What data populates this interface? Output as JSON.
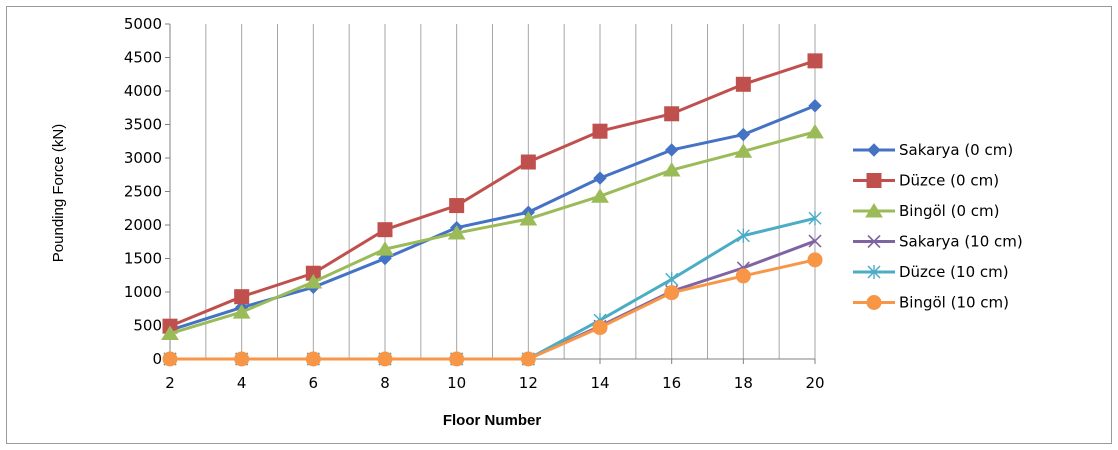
{
  "chart_data": {
    "type": "line",
    "title": "",
    "xlabel": "Floor Number",
    "ylabel": "Pounding Force (kN)",
    "x": [
      2,
      4,
      6,
      8,
      10,
      12,
      14,
      16,
      18,
      20
    ],
    "xlim": [
      2,
      20
    ],
    "ylim": [
      0,
      5000
    ],
    "x_ticks": [
      2,
      4,
      6,
      8,
      10,
      12,
      14,
      16,
      18,
      20
    ],
    "y_ticks": [
      0,
      500,
      1000,
      1500,
      2000,
      2500,
      3000,
      3500,
      4000,
      4500,
      5000
    ],
    "grid": "vertical",
    "legend_position": "right",
    "series": [
      {
        "name": "Sakarya (0 cm)",
        "color": "#4472C4",
        "marker": "diamond",
        "values": [
          430,
          770,
          1070,
          1500,
          1960,
          2190,
          2700,
          3120,
          3350,
          3780
        ]
      },
      {
        "name": "Düzce (0 cm)",
        "color": "#C0504D",
        "marker": "square",
        "values": [
          490,
          930,
          1280,
          1930,
          2290,
          2940,
          3400,
          3660,
          4100,
          4450
        ]
      },
      {
        "name": "Bingöl (0 cm)",
        "color": "#9BBB59",
        "marker": "triangle",
        "values": [
          380,
          700,
          1150,
          1640,
          1880,
          2090,
          2430,
          2820,
          3100,
          3390
        ]
      },
      {
        "name": "Sakarya (10 cm)",
        "color": "#8064A2",
        "marker": "x",
        "values": [
          0,
          0,
          0,
          0,
          0,
          0,
          490,
          1010,
          1360,
          1760
        ]
      },
      {
        "name": "Düzce (10 cm)",
        "color": "#4BACC6",
        "marker": "star",
        "values": [
          0,
          0,
          0,
          0,
          0,
          0,
          580,
          1190,
          1840,
          2100
        ]
      },
      {
        "name": "Bingöl (10 cm)",
        "color": "#F79646",
        "marker": "circle",
        "values": [
          0,
          0,
          0,
          0,
          0,
          0,
          470,
          990,
          1240,
          1480
        ]
      }
    ]
  }
}
